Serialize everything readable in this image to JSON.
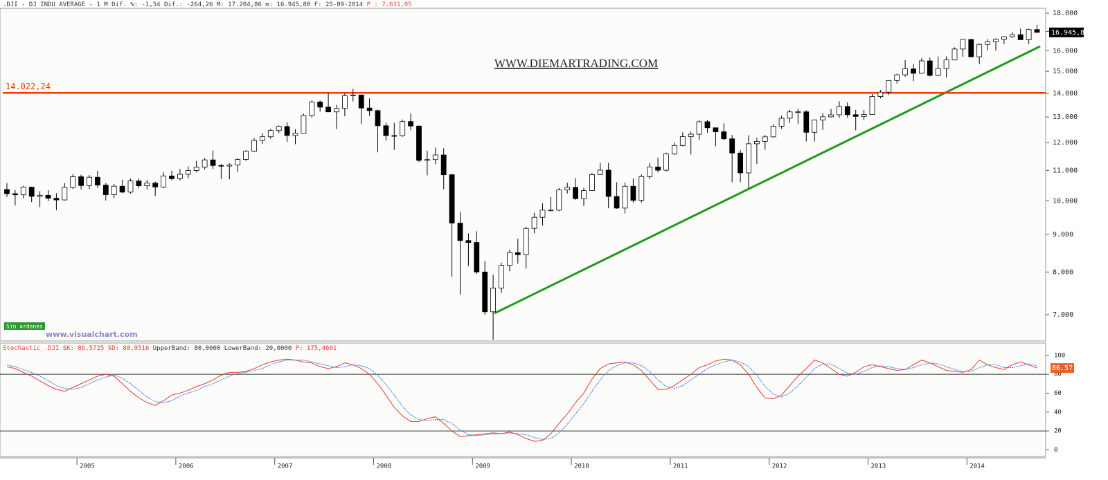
{
  "header": {
    "parts": [
      ".DJI - DJ INDU AVERAGE - 1 M Dif. %: -1,54 Dif.: -264,26 M: 17.204,86 m: 16.945,80 F: 25-09-2014",
      "P : 7.631,05"
    ]
  },
  "watermark": "WWW.DIEMARTRADING.COM",
  "source": "www.visualchart.com",
  "status": "Sin ordenes",
  "chart_data": [
    {
      "type": "candlestick",
      "log_scale": true,
      "up_color": "#ffffff",
      "down_color": "#000000",
      "categories": [
        null,
        null,
        null,
        null,
        null,
        null,
        null,
        null,
        null,
        "2005",
        null,
        null,
        null,
        null,
        null,
        null,
        null,
        null,
        null,
        null,
        null,
        "2006",
        null,
        null,
        null,
        null,
        null,
        null,
        null,
        null,
        null,
        null,
        null,
        "2007",
        null,
        null,
        null,
        null,
        null,
        null,
        null,
        null,
        null,
        null,
        null,
        "2008",
        null,
        null,
        null,
        null,
        null,
        null,
        null,
        null,
        null,
        null,
        null,
        "2009",
        null,
        null,
        null,
        null,
        null,
        null,
        null,
        null,
        null,
        null,
        null,
        "2010",
        null,
        null,
        null,
        null,
        null,
        null,
        null,
        null,
        null,
        null,
        null,
        "2011",
        null,
        null,
        null,
        null,
        null,
        null,
        null,
        null,
        null,
        null,
        null,
        "2012",
        null,
        null,
        null,
        null,
        null,
        null,
        null,
        null,
        null,
        null,
        null,
        "2013",
        null,
        null,
        null,
        null,
        null,
        null,
        null,
        null,
        null,
        null,
        null,
        "2014",
        null,
        null,
        null,
        null,
        null,
        null,
        null,
        null
      ],
      "ohlc": [
        [
          10360,
          10570,
          10120,
          10226
        ],
        [
          10226,
          10340,
          9850,
          10188
        ],
        [
          10188,
          10480,
          10080,
          10435
        ],
        [
          10435,
          10450,
          9960,
          10140
        ],
        [
          10140,
          10300,
          9810,
          10174
        ],
        [
          10174,
          10340,
          9990,
          10080
        ],
        [
          10080,
          10240,
          9710,
          10027
        ],
        [
          10027,
          10570,
          10010,
          10428
        ],
        [
          10428,
          10870,
          10380,
          10783
        ],
        [
          10783,
          10850,
          10360,
          10490
        ],
        [
          10490,
          10840,
          10370,
          10766
        ],
        [
          10766,
          10980,
          10410,
          10504
        ],
        [
          10504,
          10570,
          10010,
          10193
        ],
        [
          10193,
          10540,
          10090,
          10467
        ],
        [
          10467,
          10680,
          10240,
          10275
        ],
        [
          10275,
          10720,
          10230,
          10641
        ],
        [
          10641,
          10720,
          10400,
          10482
        ],
        [
          10482,
          10680,
          10360,
          10569
        ],
        [
          10569,
          10620,
          10160,
          10440
        ],
        [
          10440,
          10940,
          10400,
          10806
        ],
        [
          10806,
          10990,
          10660,
          10718
        ],
        [
          10718,
          11050,
          10650,
          10865
        ],
        [
          10865,
          11140,
          10730,
          10993
        ],
        [
          10993,
          11330,
          10930,
          11109
        ],
        [
          11109,
          11430,
          11030,
          11367
        ],
        [
          11367,
          11710,
          11040,
          11168
        ],
        [
          11168,
          11230,
          10700,
          11150
        ],
        [
          11150,
          11250,
          10700,
          11186
        ],
        [
          11186,
          11430,
          10950,
          11381
        ],
        [
          11381,
          11720,
          11330,
          11679
        ],
        [
          11679,
          12170,
          11650,
          12081
        ],
        [
          12081,
          12360,
          11950,
          12222
        ],
        [
          12222,
          12530,
          12140,
          12463
        ],
        [
          12463,
          12660,
          12360,
          12622
        ],
        [
          12622,
          12790,
          12030,
          12269
        ],
        [
          12269,
          12510,
          11940,
          12354
        ],
        [
          12354,
          13140,
          12350,
          13063
        ],
        [
          13063,
          13690,
          12980,
          13628
        ],
        [
          13628,
          13690,
          13220,
          13409
        ],
        [
          13409,
          14020,
          13250,
          13212
        ],
        [
          13212,
          13500,
          12520,
          13358
        ],
        [
          13358,
          14000,
          13030,
          13896
        ],
        [
          13896,
          14200,
          13650,
          13930
        ],
        [
          13930,
          13940,
          12720,
          13372
        ],
        [
          13372,
          13780,
          13050,
          13265
        ],
        [
          13265,
          13300,
          11640,
          12650
        ],
        [
          12650,
          12770,
          12070,
          12266
        ],
        [
          12266,
          12770,
          11730,
          12263
        ],
        [
          12263,
          12900,
          12220,
          12820
        ],
        [
          12820,
          13140,
          12470,
          12638
        ],
        [
          12638,
          12660,
          11290,
          11350
        ],
        [
          11350,
          11700,
          10830,
          11378
        ],
        [
          11378,
          11810,
          11210,
          11544
        ],
        [
          11544,
          11790,
          10370,
          10851
        ],
        [
          10851,
          10880,
          7880,
          9325
        ],
        [
          9325,
          9650,
          7450,
          8829
        ],
        [
          8829,
          9030,
          8150,
          8776
        ],
        [
          8776,
          9090,
          7950,
          8001
        ],
        [
          8001,
          8280,
          7000,
          7063
        ],
        [
          7063,
          7930,
          6470,
          7609
        ],
        [
          7609,
          8240,
          7490,
          8168
        ],
        [
          8168,
          8580,
          8020,
          8500
        ],
        [
          8500,
          8880,
          8210,
          8447
        ],
        [
          8447,
          9220,
          8090,
          9172
        ],
        [
          9172,
          9630,
          9030,
          9496
        ],
        [
          9496,
          9920,
          9250,
          9712
        ],
        [
          9712,
          10120,
          9670,
          9713
        ],
        [
          9713,
          10410,
          9670,
          10345
        ],
        [
          10345,
          10580,
          10230,
          10428
        ],
        [
          10428,
          10730,
          10030,
          10067
        ],
        [
          10067,
          10410,
          9840,
          10325
        ],
        [
          10325,
          10910,
          10320,
          10857
        ],
        [
          10857,
          11260,
          10860,
          11009
        ],
        [
          11009,
          11260,
          9770,
          10137
        ],
        [
          10137,
          10600,
          9750,
          9774
        ],
        [
          9774,
          10590,
          9610,
          10466
        ],
        [
          10466,
          10720,
          9940,
          10015
        ],
        [
          10015,
          10860,
          9940,
          10788
        ],
        [
          10788,
          11250,
          10710,
          11118
        ],
        [
          11118,
          11450,
          10930,
          11006
        ],
        [
          11006,
          11630,
          10960,
          11578
        ],
        [
          11578,
          12000,
          11540,
          11892
        ],
        [
          11892,
          12390,
          11860,
          12226
        ],
        [
          12226,
          12420,
          11560,
          12320
        ],
        [
          12320,
          12880,
          12090,
          12811
        ],
        [
          12811,
          12880,
          12380,
          12570
        ],
        [
          12570,
          12570,
          11860,
          12414
        ],
        [
          12414,
          12750,
          12090,
          12143
        ],
        [
          12143,
          12290,
          10600,
          11614
        ],
        [
          11614,
          11730,
          10600,
          10913
        ],
        [
          10913,
          12280,
          10400,
          11955
        ],
        [
          11955,
          12180,
          11230,
          12046
        ],
        [
          12046,
          12290,
          11730,
          12218
        ],
        [
          12218,
          12720,
          12180,
          12633
        ],
        [
          12633,
          13050,
          12530,
          12952
        ],
        [
          12952,
          13290,
          12760,
          13212
        ],
        [
          13212,
          13340,
          12710,
          13214
        ],
        [
          13214,
          13280,
          12040,
          12393
        ],
        [
          12393,
          12900,
          12040,
          12880
        ],
        [
          12880,
          13160,
          12490,
          13009
        ],
        [
          13009,
          13330,
          12980,
          13091
        ],
        [
          13091,
          13660,
          12960,
          13437
        ],
        [
          13437,
          13610,
          12970,
          13096
        ],
        [
          13096,
          13290,
          12470,
          13026
        ],
        [
          13026,
          13290,
          12880,
          13104
        ],
        [
          13104,
          13970,
          13100,
          13861
        ],
        [
          13861,
          14150,
          13780,
          14054
        ],
        [
          14054,
          14590,
          13940,
          14579
        ],
        [
          14579,
          14890,
          14440,
          14840
        ],
        [
          14840,
          15540,
          14750,
          15116
        ],
        [
          15116,
          15340,
          14550,
          14910
        ],
        [
          14910,
          15640,
          14900,
          15500
        ],
        [
          15500,
          15660,
          14760,
          14810
        ],
        [
          14810,
          15710,
          14780,
          15130
        ],
        [
          15130,
          15720,
          14720,
          15546
        ],
        [
          15546,
          16170,
          15520,
          16086
        ],
        [
          16086,
          16590,
          15700,
          16577
        ],
        [
          16577,
          16590,
          15690,
          15699
        ],
        [
          15699,
          16360,
          15340,
          16322
        ],
        [
          16322,
          16590,
          16020,
          16458
        ],
        [
          16458,
          16630,
          16010,
          16581
        ],
        [
          16581,
          16740,
          16330,
          16717
        ],
        [
          16717,
          16960,
          16650,
          16827
        ],
        [
          16827,
          17150,
          16560,
          16563
        ],
        [
          16563,
          17150,
          16330,
          17098
        ],
        [
          17098,
          17350,
          16940,
          16946
        ]
      ],
      "ylim": [
        6460,
        18275
      ],
      "yticks": [
        {
          "value": 7000,
          "label": "7.000"
        },
        {
          "value": 8000,
          "label": "8.000"
        },
        {
          "value": 9000,
          "label": "9.000"
        },
        {
          "value": 10000,
          "label": "10.000"
        },
        {
          "value": 11000,
          "label": "11.000"
        },
        {
          "value": 12000,
          "label": "12.000"
        },
        {
          "value": 13000,
          "label": "13.000"
        },
        {
          "value": 14000,
          "label": "14.000"
        },
        {
          "value": 15000,
          "label": "15.000"
        },
        {
          "value": 16000,
          "label": "16.000"
        },
        {
          "value": 17000,
          "label": "17.000"
        },
        {
          "value": 18000,
          "label": "18.000"
        }
      ],
      "hline": {
        "value": 14022.24,
        "label": "14.022,24",
        "color": "#ff3300"
      },
      "last_price": {
        "value": 16945.8,
        "label": "16.945,8"
      }
    },
    {
      "type": "line",
      "header": [
        "Stochastic_.DJI SK: 86,5725",
        "SD: 88,9516",
        "UpperBand: 80,0000 LowerBand: 20,0000",
        "P: 175,4601"
      ],
      "series": [
        {
          "name": "SK",
          "color": "#ee3333",
          "values": [
            88,
            86,
            82,
            78,
            73,
            68,
            64,
            62,
            66,
            70,
            74,
            78,
            80,
            78,
            70,
            62,
            55,
            50,
            47,
            52,
            58,
            60,
            63,
            67,
            70,
            74,
            79,
            82,
            82,
            83,
            86,
            90,
            93,
            95,
            96,
            95,
            93,
            92,
            88,
            86,
            88,
            92,
            90,
            86,
            80,
            70,
            58,
            45,
            36,
            30,
            30,
            33,
            35,
            28,
            20,
            14,
            15,
            16,
            17,
            18,
            17,
            19,
            16,
            12,
            9,
            10,
            17,
            28,
            38,
            50,
            60,
            75,
            86,
            91,
            92,
            93,
            90,
            84,
            74,
            64,
            64,
            68,
            74,
            80,
            87,
            90,
            94,
            96,
            95,
            90,
            80,
            66,
            55,
            54,
            58,
            68,
            78,
            86,
            95,
            92,
            86,
            80,
            78,
            82,
            88,
            90,
            88,
            86,
            84,
            85,
            90,
            95,
            92,
            88,
            84,
            83,
            82,
            85,
            95,
            90,
            87,
            85,
            90,
            93,
            90,
            86.57
          ]
        },
        {
          "name": "SD",
          "color": "#3377ee",
          "values": [
            90,
            88,
            85,
            82,
            78,
            73,
            68,
            65,
            64,
            66,
            70,
            74,
            77,
            79,
            76,
            70,
            63,
            56,
            51,
            50,
            52,
            57,
            60,
            63,
            67,
            70,
            74,
            78,
            81,
            82,
            84,
            86,
            90,
            93,
            95,
            95,
            95,
            93,
            91,
            89,
            87,
            88,
            90,
            89,
            86,
            79,
            69,
            58,
            46,
            37,
            32,
            31,
            32,
            32,
            28,
            21,
            16,
            15,
            16,
            17,
            17,
            18,
            17,
            16,
            13,
            11,
            12,
            18,
            27,
            38,
            49,
            62,
            74,
            84,
            89,
            92,
            92,
            89,
            83,
            74,
            67,
            65,
            68,
            74,
            80,
            86,
            90,
            93,
            95,
            93,
            88,
            79,
            67,
            59,
            56,
            60,
            68,
            77,
            86,
            91,
            91,
            86,
            81,
            80,
            83,
            87,
            89,
            88,
            86,
            85,
            87,
            90,
            92,
            91,
            88,
            85,
            83,
            83,
            87,
            90,
            90,
            87,
            87,
            89,
            91,
            88.95
          ]
        }
      ],
      "bands": [
        80,
        20
      ],
      "ylim": [
        -7,
        113
      ],
      "yticks": [
        0,
        20,
        40,
        60,
        80,
        100
      ],
      "last_value": {
        "value": 86.57,
        "label": "86.57"
      }
    }
  ]
}
